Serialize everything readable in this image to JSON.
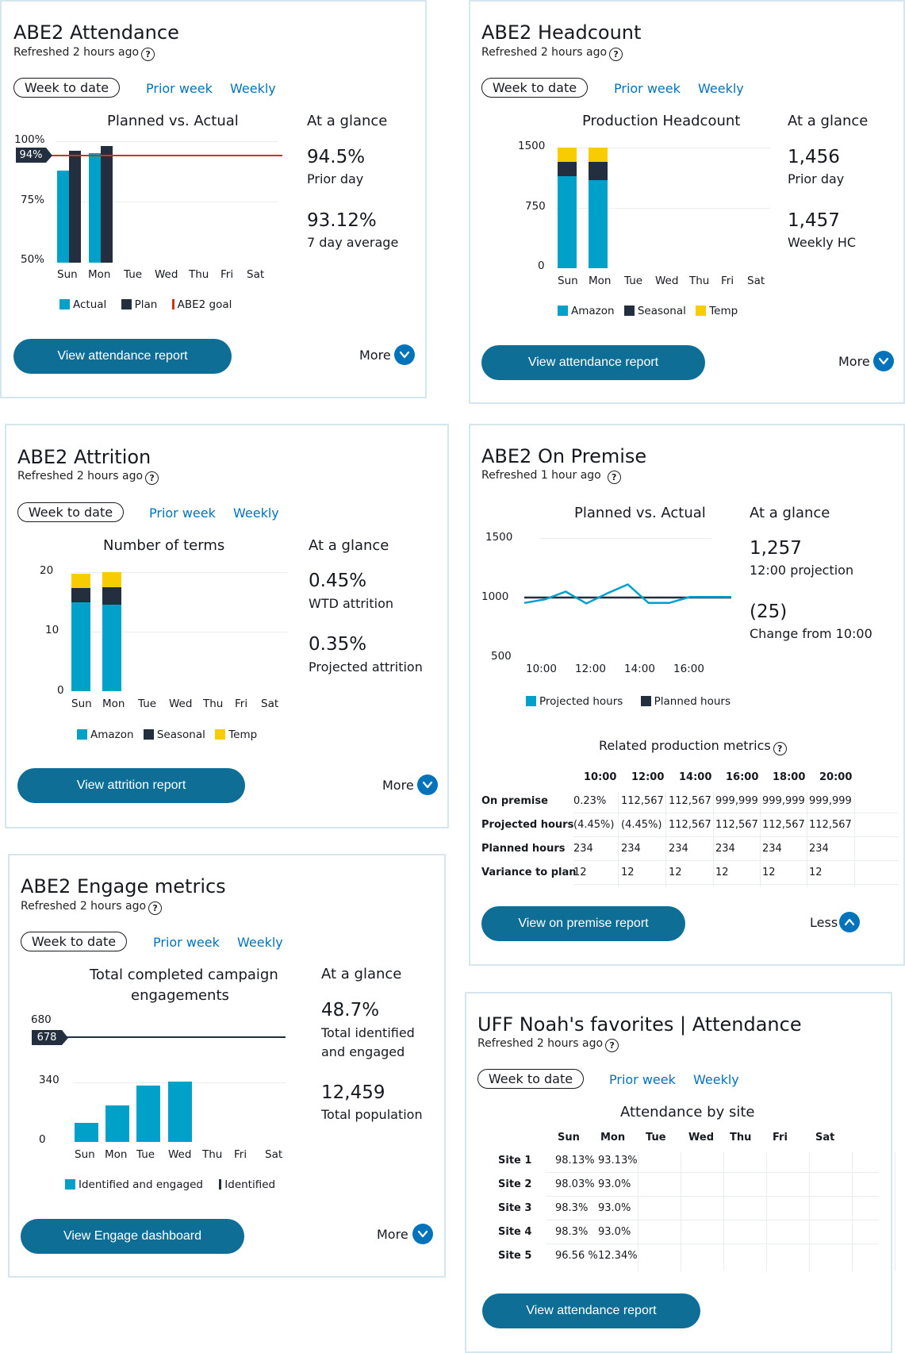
{
  "colors": {
    "primary": "#0073bb",
    "dark": "#232f3e",
    "yellow": "#f7cd00",
    "cyan": "#00a1c9",
    "red": "#d13212",
    "button": "#0f6e96"
  },
  "attendance": {
    "title": "ABE2 Attendance",
    "refreshed": "Refreshed 2 hours ago",
    "tabs": {
      "active": "Week to date",
      "prior": "Prior week",
      "weekly": "Weekly"
    },
    "chart_title": "Planned vs. Actual",
    "glance_label": "At a glance",
    "glance": [
      {
        "value": "94.5%",
        "label": "Prior day"
      },
      {
        "value": "93.12%",
        "label": "7 day average"
      }
    ],
    "button": "View attendance report",
    "more": "More"
  },
  "headcount": {
    "title": "ABE2 Headcount",
    "refreshed": "Refreshed 2 hours ago",
    "tabs": {
      "active": "Week to date",
      "prior": "Prior week",
      "weekly": "Weekly"
    },
    "chart_title": "Production Headcount",
    "glance_label": "At a glance",
    "glance": [
      {
        "value": "1,456",
        "label": "Prior day"
      },
      {
        "value": "1,457",
        "label": "Weekly HC"
      }
    ],
    "button": "View attendance report",
    "more": "More"
  },
  "attrition": {
    "title": "ABE2 Attrition",
    "refreshed": "Refreshed 2 hours ago",
    "tabs": {
      "active": "Week to date",
      "prior": "Prior week",
      "weekly": "Weekly"
    },
    "chart_title": "Number of terms",
    "glance_label": "At a glance",
    "glance": [
      {
        "value": "0.45%",
        "label": "WTD attrition"
      },
      {
        "value": "0.35%",
        "label": "Projected attrition"
      }
    ],
    "button": "View attrition report",
    "more": "More"
  },
  "onpremise": {
    "title": "ABE2 On Premise",
    "refreshed": "Refreshed 1 hour ago",
    "chart_title": "Planned vs. Actual",
    "glance_label": "At a glance",
    "glance": [
      {
        "value": "1,257",
        "label": "12:00 projection"
      },
      {
        "value": "(25)",
        "label": "Change from 10:00"
      }
    ],
    "related_title": "Related production metrics",
    "table": {
      "columns": [
        "10:00",
        "12:00",
        "14:00",
        "16:00",
        "18:00",
        "20:00"
      ],
      "rows": [
        {
          "label": "On premise",
          "cells": [
            "0.23%",
            "112,567",
            "112,567",
            "999,999",
            "999,999",
            "999,999"
          ]
        },
        {
          "label": "Projected hours",
          "cells": [
            "(4.45%)",
            "(4.45%)",
            "112,567",
            "112,567",
            "112,567",
            "112,567"
          ]
        },
        {
          "label": "Planned hours",
          "cells": [
            "234",
            "234",
            "234",
            "234",
            "234",
            "234"
          ]
        },
        {
          "label": "Variance to plan",
          "cells": [
            "12",
            "12",
            "12",
            "12",
            "12",
            "12"
          ]
        }
      ]
    },
    "button": "View on premise report",
    "less": "Less"
  },
  "engage": {
    "title": "ABE2 Engage metrics",
    "refreshed": "Refreshed 2 hours ago",
    "tabs": {
      "active": "Week to date",
      "prior": "Prior week",
      "weekly": "Weekly"
    },
    "chart_title_1": "Total completed campaign",
    "chart_title_2": "engagements",
    "glance_label": "At a glance",
    "glance": [
      {
        "value": "48.7%",
        "label1": "Total identified",
        "label2": "and engaged"
      },
      {
        "value": "12,459",
        "label1": "Total population"
      }
    ],
    "button": "View Engage dashboard",
    "more": "More"
  },
  "uff": {
    "title": "UFF Noah's favorites | Attendance",
    "refreshed": "Refreshed 2 hours ago",
    "tabs": {
      "active": "Week to date",
      "prior": "Prior week",
      "weekly": "Weekly"
    },
    "table_title": "Attendance by site",
    "columns": [
      "Sun",
      "Mon",
      "Tue",
      "Wed",
      "Thu",
      "Fri",
      "Sat"
    ],
    "rows": [
      {
        "label": "Site 1",
        "cells": [
          "98.13%",
          "93.13%",
          "",
          "",
          "",
          "",
          ""
        ]
      },
      {
        "label": "Site 2",
        "cells": [
          "98.03%",
          "93.0%",
          "",
          "",
          "",
          "",
          ""
        ]
      },
      {
        "label": "Site 3",
        "cells": [
          "98.3%",
          "93.0%",
          "",
          "",
          "",
          "",
          ""
        ]
      },
      {
        "label": "Site 4",
        "cells": [
          "98.3%",
          "93.0%",
          "",
          "",
          "",
          "",
          ""
        ]
      },
      {
        "label": "Site 5",
        "cells": [
          "96.56 %",
          "12.34%",
          "",
          "",
          "",
          "",
          ""
        ]
      }
    ],
    "button": "View attendance report"
  },
  "chart_data": [
    {
      "id": "attendance",
      "type": "bar",
      "title": "Planned vs. Actual",
      "categories": [
        "Sun",
        "Mon",
        "Tue",
        "Wed",
        "Thu",
        "Fri",
        "Sat"
      ],
      "series": [
        {
          "name": "Actual",
          "values": [
            88,
            null,
            null,
            null,
            null,
            null,
            null
          ],
          "values_mon": 95
        },
        {
          "name": "Plan",
          "values": [
            96,
            98,
            null,
            null,
            null,
            null,
            null
          ]
        }
      ],
      "actual": [
        88,
        95,
        null,
        null,
        null,
        null,
        null
      ],
      "plan": [
        96,
        98,
        null,
        null,
        null,
        null,
        null
      ],
      "goal": 94,
      "goal_label": "94%",
      "ylim": [
        50,
        100
      ],
      "yticks": [
        "100%",
        "75%",
        "50%"
      ],
      "legend": [
        "Actual",
        "Plan",
        "ABE2 goal"
      ]
    },
    {
      "id": "headcount",
      "type": "bar",
      "title": "Production Headcount",
      "categories": [
        "Sun",
        "Mon",
        "Tue",
        "Wed",
        "Thu",
        "Fri",
        "Sat"
      ],
      "amazon": [
        1140,
        1100,
        null,
        null,
        null,
        null,
        null
      ],
      "seasonal": [
        180,
        220,
        null,
        null,
        null,
        null,
        null
      ],
      "temp": [
        180,
        180,
        null,
        null,
        null,
        null,
        null
      ],
      "ylim": [
        0,
        1500
      ],
      "yticks": [
        "1500",
        "750",
        "0"
      ],
      "legend": [
        "Amazon",
        "Seasonal",
        "Temp"
      ]
    },
    {
      "id": "attrition",
      "type": "bar",
      "title": "Number of terms",
      "categories": [
        "Sun",
        "Mon",
        "Tue",
        "Wed",
        "Thu",
        "Fri",
        "Sat"
      ],
      "amazon": [
        15,
        14.5,
        null,
        null,
        null,
        null,
        null
      ],
      "seasonal": [
        2.3,
        3,
        null,
        null,
        null,
        null,
        null
      ],
      "temp": [
        2.5,
        2.5,
        null,
        null,
        null,
        null,
        null
      ],
      "ylim": [
        0,
        20
      ],
      "yticks": [
        "20",
        "10",
        "0"
      ],
      "legend": [
        "Amazon",
        "Seasonal",
        "Temp"
      ]
    },
    {
      "id": "onpremise",
      "type": "line",
      "title": "Planned vs. Actual",
      "x": [
        "10:00",
        "10:30",
        "11:00",
        "11:30",
        "12:00",
        "12:30",
        "13:00",
        "13:30",
        "14:00",
        "14:30",
        "15:00",
        "15:30",
        "16:00",
        "16:30",
        "17:00"
      ],
      "projected": [
        955,
        985,
        1050,
        950,
        1035,
        1110,
        955,
        955,
        1005,
        1005,
        1005
      ],
      "planned": 1000,
      "ylim": [
        500,
        1500
      ],
      "yticks": [
        "1500",
        "1000",
        "500"
      ],
      "xticks": [
        "10:00",
        "12:00",
        "14:00",
        "16:00"
      ],
      "legend": [
        "Projected hours",
        "Planned hours"
      ]
    },
    {
      "id": "engage",
      "type": "bar",
      "title": "Total completed campaign engagements",
      "categories": [
        "Sun",
        "Mon",
        "Tue",
        "Wed",
        "Thu",
        "Fri",
        "Sat"
      ],
      "values": [
        110,
        210,
        320,
        345,
        null,
        null,
        null
      ],
      "identified": 678,
      "identified_label": "678",
      "ylim": [
        0,
        680
      ],
      "yticks": [
        "680",
        "340",
        "0"
      ],
      "legend": [
        "Identified and engaged",
        "Identified"
      ]
    }
  ]
}
